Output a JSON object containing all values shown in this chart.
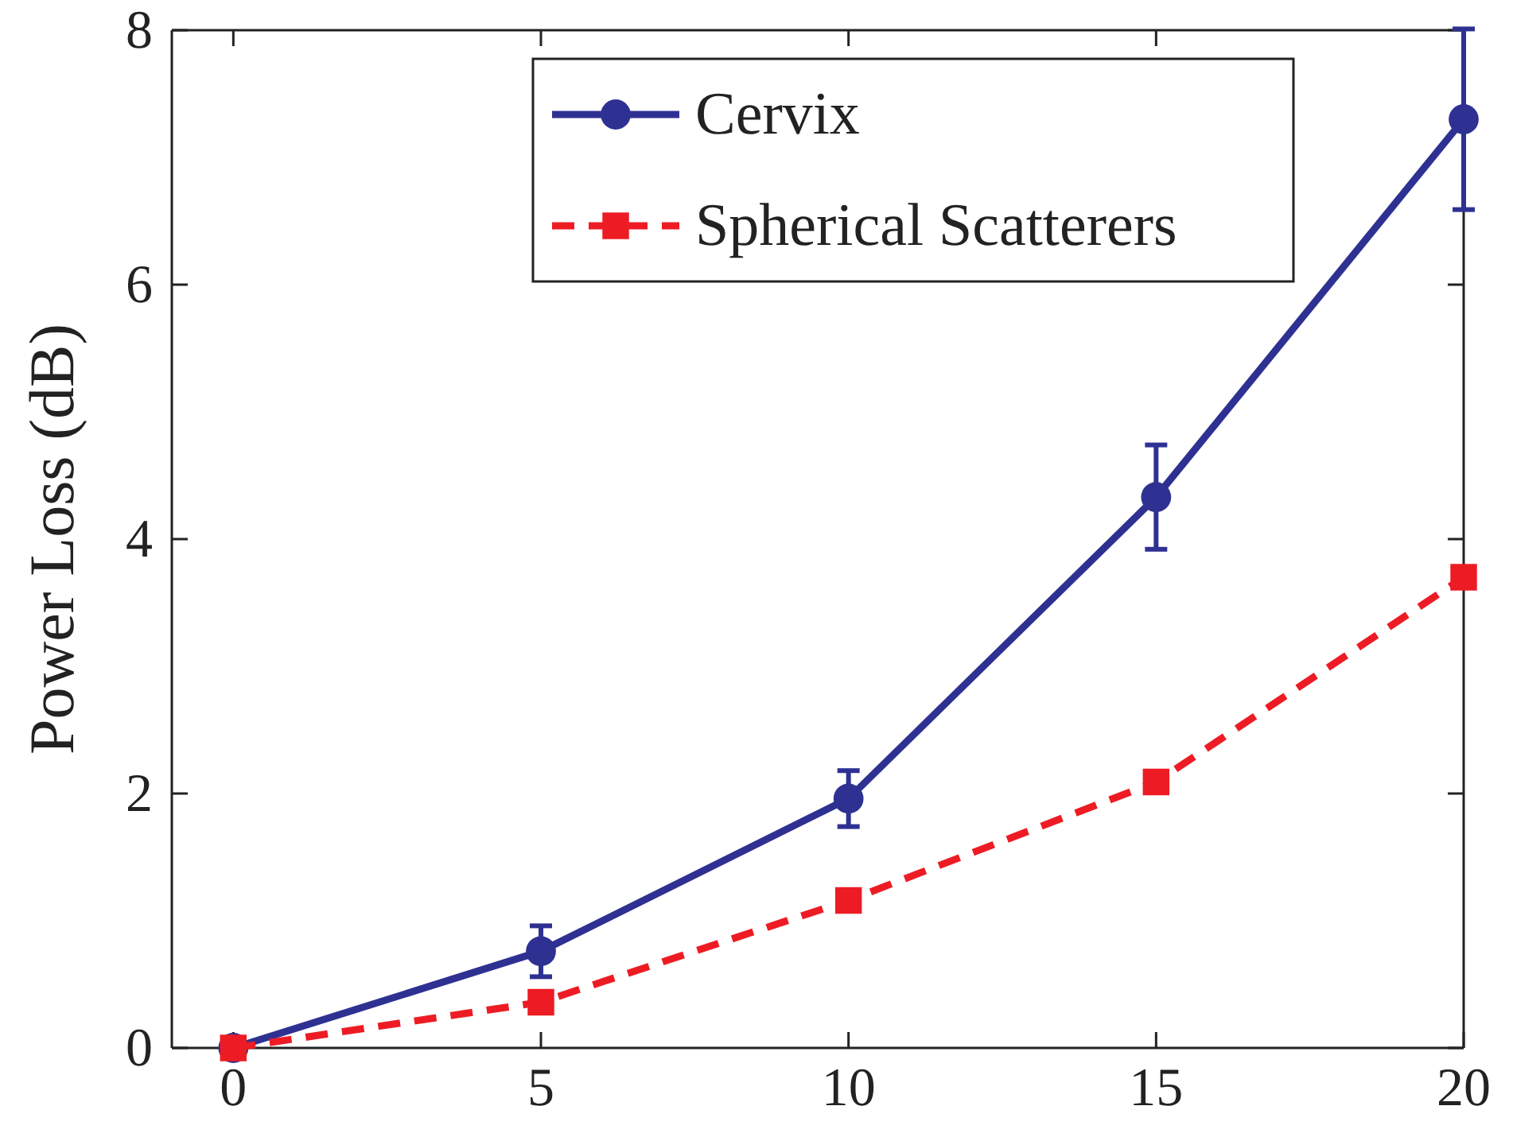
{
  "chart_data": {
    "type": "line",
    "ylabel": "Power Loss (dB)",
    "x": [
      0,
      5,
      10,
      15,
      20
    ],
    "xlim": [
      -1,
      20
    ],
    "xticks": [
      0,
      5,
      10,
      15,
      20
    ],
    "ylim": [
      0,
      8
    ],
    "yticks": [
      0,
      2,
      4,
      6,
      8
    ],
    "grid": false,
    "legend": "top",
    "series": [
      {
        "name": "Cervix",
        "color": "#2e3192",
        "values": [
          0,
          0.76,
          1.96,
          4.33,
          7.3
        ],
        "errors": [
          null,
          0.2,
          0.22,
          0.41,
          0.71
        ],
        "marker": "circle",
        "line_style": "solid"
      },
      {
        "name": "Spherical Scatterers",
        "color": "#ed1c24",
        "values": [
          0,
          0.36,
          1.16,
          2.09,
          3.7
        ],
        "marker": "square",
        "line_style": "dashed"
      }
    ]
  }
}
